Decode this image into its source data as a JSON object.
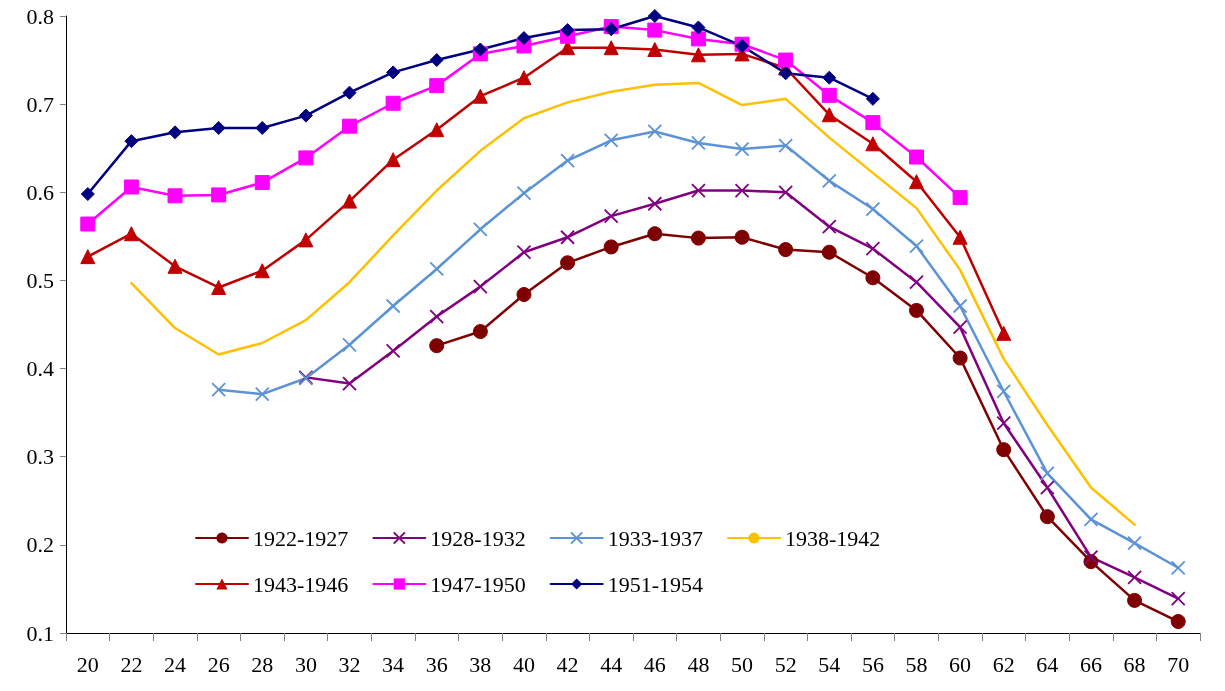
{
  "chart_data": {
    "type": "line",
    "categories": [
      "20",
      "22",
      "24",
      "26",
      "28",
      "30",
      "32",
      "34",
      "36",
      "38",
      "40",
      "42",
      "44",
      "46",
      "48",
      "50",
      "52",
      "54",
      "56",
      "58",
      "60",
      "62",
      "64",
      "66",
      "68",
      "70"
    ],
    "ylim": [
      0.1,
      0.8
    ],
    "yticks": [
      0.1,
      0.2,
      0.3,
      0.4,
      0.5,
      0.6,
      0.7,
      0.8
    ],
    "grid": false,
    "legend": "bottom",
    "line_style": "solid",
    "series": [
      {
        "name": "1922-1927",
        "color": "#7f0000",
        "marker": "circle",
        "values": [
          null,
          null,
          null,
          null,
          null,
          null,
          null,
          null,
          0.426,
          0.442,
          0.484,
          0.52,
          0.538,
          0.553,
          0.548,
          0.549,
          0.535,
          0.532,
          0.503,
          0.466,
          0.412,
          0.308,
          0.232,
          0.181,
          0.137,
          0.113
        ]
      },
      {
        "name": "1928-1932",
        "color": "#800080",
        "marker": "cross",
        "values": [
          null,
          null,
          null,
          null,
          null,
          0.39,
          0.383,
          0.42,
          0.459,
          0.493,
          0.532,
          0.549,
          0.573,
          0.587,
          0.602,
          0.602,
          0.6,
          0.561,
          0.536,
          0.498,
          0.447,
          0.338,
          0.265,
          0.186,
          0.163,
          0.139
        ]
      },
      {
        "name": "1933-1937",
        "color": "#5b93d6",
        "marker": "cross",
        "values": [
          null,
          null,
          null,
          0.376,
          0.371,
          0.389,
          0.427,
          0.471,
          0.513,
          0.558,
          0.599,
          0.636,
          0.659,
          0.669,
          0.656,
          0.649,
          0.653,
          0.613,
          0.581,
          0.539,
          0.471,
          0.374,
          0.281,
          0.229,
          0.202,
          0.174
        ]
      },
      {
        "name": "1938-1942",
        "color": "#ffc000",
        "marker": "none",
        "values": [
          null,
          0.497,
          0.446,
          0.416,
          0.429,
          0.455,
          0.498,
          0.551,
          0.602,
          0.647,
          0.684,
          0.702,
          0.714,
          0.722,
          0.724,
          0.699,
          0.706,
          0.662,
          0.622,
          0.582,
          0.512,
          0.411,
          0.336,
          0.265,
          0.223,
          null
        ]
      },
      {
        "name": "1943-1946",
        "color": "#c00000",
        "marker": "triangle",
        "values": [
          0.527,
          0.553,
          0.516,
          0.492,
          0.511,
          0.546,
          0.59,
          0.637,
          0.671,
          0.709,
          0.73,
          0.764,
          0.764,
          0.762,
          0.756,
          0.757,
          0.741,
          0.688,
          0.655,
          0.612,
          0.549,
          0.44,
          null,
          null,
          null,
          null
        ]
      },
      {
        "name": "1947-1950",
        "color": "#ff00ff",
        "marker": "square",
        "values": [
          0.564,
          0.606,
          0.596,
          0.597,
          0.611,
          0.639,
          0.675,
          0.701,
          0.721,
          0.757,
          0.766,
          0.777,
          0.788,
          0.784,
          0.774,
          0.768,
          0.75,
          0.71,
          0.679,
          0.64,
          0.594,
          null,
          null,
          null,
          null,
          null
        ]
      },
      {
        "name": "1951-1954",
        "color": "#000080",
        "marker": "diamond",
        "values": [
          0.598,
          0.658,
          0.668,
          0.673,
          0.673,
          0.687,
          0.713,
          0.736,
          0.75,
          0.762,
          0.775,
          0.784,
          0.785,
          0.8,
          0.787,
          0.766,
          0.735,
          0.73,
          0.706,
          null,
          null,
          null,
          null,
          null,
          null,
          null
        ]
      }
    ]
  }
}
